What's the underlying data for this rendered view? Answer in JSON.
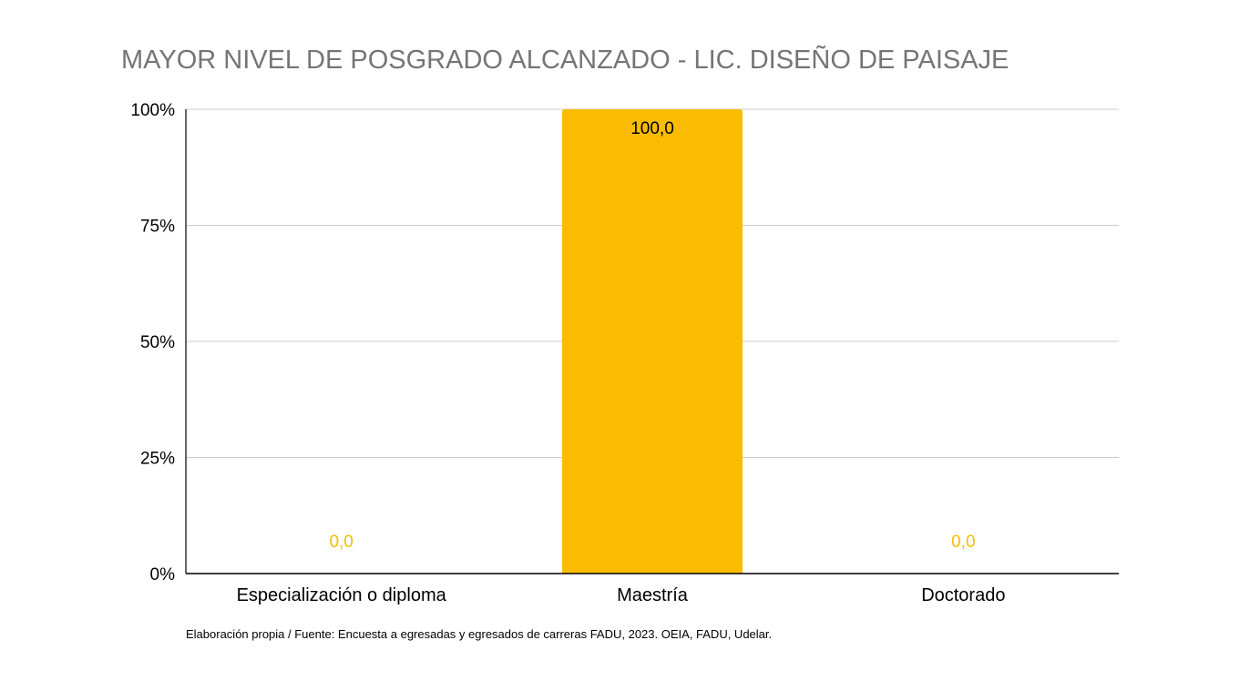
{
  "chart_data": {
    "type": "bar",
    "title": "MAYOR NIVEL DE POSGRADO ALCANZADO - LIC. DISEÑO DE PAISAJE",
    "categories": [
      "Especialización o diploma",
      "Maestría",
      "Doctorado"
    ],
    "values": [
      0,
      100,
      0
    ],
    "data_labels": [
      "0,0",
      "100,0",
      "0,0"
    ],
    "ylim": [
      0,
      100
    ],
    "yticks": [
      0,
      25,
      50,
      75,
      100
    ],
    "ytick_labels": [
      "0%",
      "25%",
      "50%",
      "75%",
      "100%"
    ],
    "xlabel": "",
    "ylabel": "",
    "grid": true,
    "legend": "none",
    "bar_color": "#F9BC00",
    "zero_label_color": "#F9BC00",
    "bar_label_color": "#000000",
    "gridline_color": "#CCCCCC",
    "source": "Elaboración propia / Fuente: Encuesta a egresadas y egresados de carreras FADU, 2023. OEIA, FADU, Udelar."
  }
}
